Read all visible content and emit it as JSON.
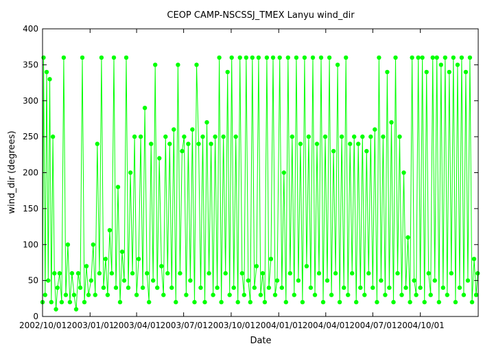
{
  "chart_data": {
    "type": "line",
    "title": "CEOP CAMP-NSCSSJ_TMEX Lanyu  wind_dir",
    "xlabel": "Date",
    "ylabel": "wind_dir (degrees)",
    "ylim": [
      0,
      400
    ],
    "yticks": [
      "0",
      "50",
      "100",
      "150",
      "200",
      "250",
      "300",
      "350",
      "400"
    ],
    "xlim": [
      "2002-10-01",
      "2005-01-21"
    ],
    "xticks": [
      {
        "date": "2002-10-01",
        "label": "2002/10/01"
      },
      {
        "date": "2003-01-01",
        "label": "2003/01/01"
      },
      {
        "date": "2003-04-01",
        "label": "2003/04/01"
      },
      {
        "date": "2003-07-01",
        "label": "2003/07/01"
      },
      {
        "date": "2003-10-01",
        "label": "2003/10/01"
      },
      {
        "date": "2004-01-01",
        "label": "2004/01/01"
      },
      {
        "date": "2004-04-01",
        "label": "2004/04/01"
      },
      {
        "date": "2004-07-01",
        "label": "2004/07/01"
      },
      {
        "date": "2004-10-01",
        "label": "2004/10/01"
      }
    ],
    "grid": false,
    "legend": "none",
    "series_color": "#00ff00",
    "marker": "circle",
    "series": [
      {
        "points": [
          [
            "2002-10-01",
            20
          ],
          [
            "2002-10-03",
            360
          ],
          [
            "2002-10-06",
            30
          ],
          [
            "2002-10-09",
            340
          ],
          [
            "2002-10-12",
            50
          ],
          [
            "2002-10-15",
            330
          ],
          [
            "2002-10-18",
            20
          ],
          [
            "2002-10-21",
            250
          ],
          [
            "2002-10-24",
            60
          ],
          [
            "2002-10-27",
            10
          ],
          [
            "2002-10-30",
            40
          ],
          [
            "2002-11-03",
            60
          ],
          [
            "2002-11-07",
            20
          ],
          [
            "2002-11-11",
            360
          ],
          [
            "2002-11-15",
            30
          ],
          [
            "2002-11-19",
            100
          ],
          [
            "2002-11-23",
            20
          ],
          [
            "2002-11-27",
            60
          ],
          [
            "2002-12-01",
            30
          ],
          [
            "2002-12-05",
            10
          ],
          [
            "2002-12-09",
            60
          ],
          [
            "2002-12-13",
            40
          ],
          [
            "2002-12-17",
            360
          ],
          [
            "2002-12-21",
            20
          ],
          [
            "2002-12-25",
            70
          ],
          [
            "2002-12-29",
            30
          ],
          [
            "2003-01-03",
            50
          ],
          [
            "2003-01-07",
            100
          ],
          [
            "2003-01-11",
            30
          ],
          [
            "2003-01-15",
            240
          ],
          [
            "2003-01-19",
            60
          ],
          [
            "2003-01-23",
            360
          ],
          [
            "2003-01-27",
            40
          ],
          [
            "2003-01-31",
            80
          ],
          [
            "2003-02-04",
            30
          ],
          [
            "2003-02-08",
            120
          ],
          [
            "2003-02-12",
            60
          ],
          [
            "2003-02-16",
            360
          ],
          [
            "2003-02-20",
            40
          ],
          [
            "2003-02-24",
            180
          ],
          [
            "2003-02-28",
            20
          ],
          [
            "2003-03-04",
            90
          ],
          [
            "2003-03-08",
            50
          ],
          [
            "2003-03-12",
            360
          ],
          [
            "2003-03-16",
            40
          ],
          [
            "2003-03-20",
            200
          ],
          [
            "2003-03-24",
            60
          ],
          [
            "2003-03-28",
            250
          ],
          [
            "2003-04-01",
            30
          ],
          [
            "2003-04-05",
            80
          ],
          [
            "2003-04-09",
            250
          ],
          [
            "2003-04-13",
            40
          ],
          [
            "2003-04-17",
            290
          ],
          [
            "2003-04-21",
            60
          ],
          [
            "2003-04-25",
            20
          ],
          [
            "2003-04-29",
            240
          ],
          [
            "2003-05-03",
            50
          ],
          [
            "2003-05-07",
            350
          ],
          [
            "2003-05-11",
            40
          ],
          [
            "2003-05-15",
            220
          ],
          [
            "2003-05-19",
            70
          ],
          [
            "2003-05-23",
            30
          ],
          [
            "2003-05-27",
            250
          ],
          [
            "2003-05-31",
            60
          ],
          [
            "2003-06-04",
            240
          ],
          [
            "2003-06-08",
            40
          ],
          [
            "2003-06-12",
            260
          ],
          [
            "2003-06-16",
            20
          ],
          [
            "2003-06-20",
            350
          ],
          [
            "2003-06-24",
            60
          ],
          [
            "2003-06-28",
            230
          ],
          [
            "2003-07-02",
            250
          ],
          [
            "2003-07-06",
            30
          ],
          [
            "2003-07-10",
            240
          ],
          [
            "2003-07-14",
            50
          ],
          [
            "2003-07-18",
            260
          ],
          [
            "2003-07-22",
            20
          ],
          [
            "2003-07-26",
            350
          ],
          [
            "2003-07-30",
            240
          ],
          [
            "2003-08-03",
            40
          ],
          [
            "2003-08-07",
            250
          ],
          [
            "2003-08-11",
            20
          ],
          [
            "2003-08-15",
            270
          ],
          [
            "2003-08-19",
            60
          ],
          [
            "2003-08-23",
            240
          ],
          [
            "2003-08-27",
            30
          ],
          [
            "2003-08-31",
            250
          ],
          [
            "2003-09-04",
            40
          ],
          [
            "2003-09-08",
            360
          ],
          [
            "2003-09-12",
            20
          ],
          [
            "2003-09-16",
            250
          ],
          [
            "2003-09-20",
            60
          ],
          [
            "2003-09-24",
            340
          ],
          [
            "2003-09-28",
            30
          ],
          [
            "2003-10-02",
            360
          ],
          [
            "2003-10-06",
            40
          ],
          [
            "2003-10-10",
            250
          ],
          [
            "2003-10-14",
            20
          ],
          [
            "2003-10-18",
            360
          ],
          [
            "2003-10-22",
            60
          ],
          [
            "2003-10-26",
            30
          ],
          [
            "2003-10-30",
            360
          ],
          [
            "2003-11-03",
            50
          ],
          [
            "2003-11-07",
            20
          ],
          [
            "2003-11-11",
            360
          ],
          [
            "2003-11-15",
            40
          ],
          [
            "2003-11-19",
            70
          ],
          [
            "2003-11-23",
            360
          ],
          [
            "2003-11-27",
            30
          ],
          [
            "2003-12-01",
            60
          ],
          [
            "2003-12-05",
            20
          ],
          [
            "2003-12-09",
            360
          ],
          [
            "2003-12-13",
            40
          ],
          [
            "2003-12-17",
            80
          ],
          [
            "2003-12-21",
            360
          ],
          [
            "2003-12-25",
            30
          ],
          [
            "2003-12-29",
            50
          ],
          [
            "2004-01-03",
            360
          ],
          [
            "2004-01-07",
            40
          ],
          [
            "2004-01-11",
            200
          ],
          [
            "2004-01-15",
            20
          ],
          [
            "2004-01-19",
            360
          ],
          [
            "2004-01-23",
            60
          ],
          [
            "2004-01-27",
            250
          ],
          [
            "2004-01-31",
            30
          ],
          [
            "2004-02-04",
            360
          ],
          [
            "2004-02-08",
            50
          ],
          [
            "2004-02-12",
            240
          ],
          [
            "2004-02-16",
            20
          ],
          [
            "2004-02-20",
            360
          ],
          [
            "2004-02-24",
            70
          ],
          [
            "2004-02-28",
            250
          ],
          [
            "2004-03-03",
            40
          ],
          [
            "2004-03-07",
            360
          ],
          [
            "2004-03-11",
            30
          ],
          [
            "2004-03-15",
            240
          ],
          [
            "2004-03-19",
            60
          ],
          [
            "2004-03-23",
            360
          ],
          [
            "2004-03-27",
            20
          ],
          [
            "2004-03-31",
            250
          ],
          [
            "2004-04-04",
            50
          ],
          [
            "2004-04-08",
            360
          ],
          [
            "2004-04-12",
            30
          ],
          [
            "2004-04-16",
            230
          ],
          [
            "2004-04-20",
            60
          ],
          [
            "2004-04-24",
            350
          ],
          [
            "2004-04-28",
            20
          ],
          [
            "2004-05-02",
            250
          ],
          [
            "2004-05-06",
            40
          ],
          [
            "2004-05-10",
            360
          ],
          [
            "2004-05-14",
            30
          ],
          [
            "2004-05-18",
            240
          ],
          [
            "2004-05-22",
            60
          ],
          [
            "2004-05-26",
            250
          ],
          [
            "2004-05-30",
            20
          ],
          [
            "2004-06-03",
            240
          ],
          [
            "2004-06-07",
            40
          ],
          [
            "2004-06-11",
            250
          ],
          [
            "2004-06-15",
            30
          ],
          [
            "2004-06-19",
            230
          ],
          [
            "2004-06-23",
            60
          ],
          [
            "2004-06-27",
            250
          ],
          [
            "2004-07-01",
            40
          ],
          [
            "2004-07-05",
            260
          ],
          [
            "2004-07-09",
            20
          ],
          [
            "2004-07-13",
            360
          ],
          [
            "2004-07-17",
            50
          ],
          [
            "2004-07-21",
            250
          ],
          [
            "2004-07-25",
            30
          ],
          [
            "2004-07-29",
            340
          ],
          [
            "2004-08-02",
            40
          ],
          [
            "2004-08-06",
            270
          ],
          [
            "2004-08-10",
            20
          ],
          [
            "2004-08-14",
            360
          ],
          [
            "2004-08-18",
            60
          ],
          [
            "2004-08-22",
            250
          ],
          [
            "2004-08-26",
            30
          ],
          [
            "2004-08-30",
            200
          ],
          [
            "2004-09-03",
            40
          ],
          [
            "2004-09-07",
            110
          ],
          [
            "2004-09-11",
            20
          ],
          [
            "2004-09-15",
            360
          ],
          [
            "2004-09-19",
            50
          ],
          [
            "2004-09-23",
            30
          ],
          [
            "2004-09-27",
            360
          ],
          [
            "2004-10-01",
            40
          ],
          [
            "2004-10-05",
            360
          ],
          [
            "2004-10-09",
            20
          ],
          [
            "2004-10-13",
            340
          ],
          [
            "2004-10-17",
            60
          ],
          [
            "2004-10-21",
            30
          ],
          [
            "2004-10-25",
            360
          ],
          [
            "2004-10-29",
            50
          ],
          [
            "2004-11-02",
            360
          ],
          [
            "2004-11-06",
            20
          ],
          [
            "2004-11-10",
            350
          ],
          [
            "2004-11-14",
            40
          ],
          [
            "2004-11-18",
            360
          ],
          [
            "2004-11-22",
            30
          ],
          [
            "2004-11-26",
            340
          ],
          [
            "2004-11-30",
            60
          ],
          [
            "2004-12-04",
            360
          ],
          [
            "2004-12-08",
            20
          ],
          [
            "2004-12-12",
            350
          ],
          [
            "2004-12-16",
            40
          ],
          [
            "2004-12-20",
            360
          ],
          [
            "2004-12-24",
            30
          ],
          [
            "2004-12-28",
            340
          ],
          [
            "2005-01-01",
            50
          ],
          [
            "2005-01-05",
            360
          ],
          [
            "2005-01-09",
            20
          ],
          [
            "2005-01-13",
            80
          ],
          [
            "2005-01-17",
            30
          ],
          [
            "2005-01-20",
            60
          ]
        ]
      }
    ]
  }
}
